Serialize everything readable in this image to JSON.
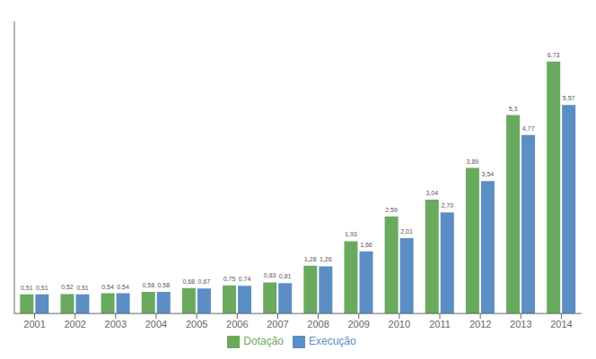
{
  "chart_data": {
    "type": "bar",
    "categories": [
      "2001",
      "2002",
      "2003",
      "2004",
      "2005",
      "2006",
      "2007",
      "2008",
      "2009",
      "2010",
      "2011",
      "2012",
      "2013",
      "2014"
    ],
    "series": [
      {
        "name": "Dotação",
        "color": "#6aaa5f",
        "values": [
          0.51,
          0.52,
          0.54,
          0.58,
          0.68,
          0.75,
          0.83,
          1.28,
          1.93,
          2.59,
          3.04,
          3.89,
          5.3,
          6.73
        ],
        "value_labels": [
          "0,51",
          "0,52",
          "0,54",
          "0,58",
          "0,68",
          "0,75",
          "0,83",
          "1,28",
          "1,93",
          "2,59",
          "3,04",
          "3,89",
          "5,3",
          "6,73"
        ]
      },
      {
        "name": "Execução",
        "color": "#5b8ec4",
        "values": [
          0.51,
          0.51,
          0.54,
          0.58,
          0.67,
          0.74,
          0.81,
          1.26,
          1.66,
          2.01,
          2.7,
          3.54,
          4.77,
          5.57
        ],
        "value_labels": [
          "0,51",
          "0,51",
          "0,54",
          "0,58",
          "0,67",
          "0,74",
          "0,81",
          "1,26",
          "1,66",
          "2,01",
          "2,70",
          "3,54",
          "4,77",
          "5,57"
        ]
      }
    ],
    "ylim": [
      0,
      7.8
    ],
    "grid": false,
    "legend": "bottom",
    "data_labels": true,
    "tick_labels": "x"
  }
}
